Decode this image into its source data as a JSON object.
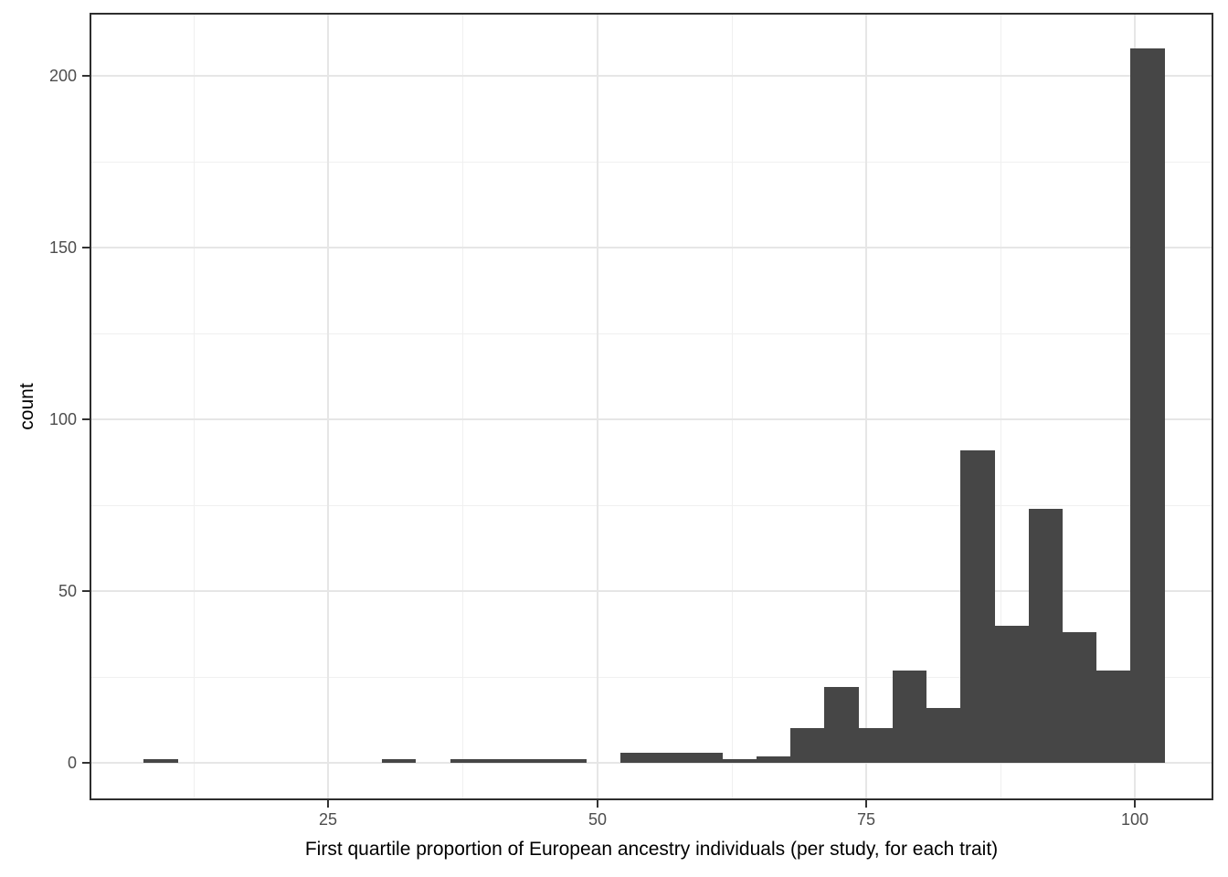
{
  "figure": {
    "x_axis_title": "First quartile proportion of European ancestry individuals (per study, for each trait)",
    "y_axis_title": "count"
  },
  "chart_data": {
    "type": "bar",
    "subtype": "histogram",
    "title": "",
    "xlabel": "First quartile proportion of European ancestry individuals (per study, for each trait)",
    "ylabel": "count",
    "bin_edges": [
      7.85,
      11.01,
      14.18,
      17.34,
      20.51,
      23.67,
      26.84,
      30.0,
      33.16,
      36.33,
      39.49,
      42.66,
      45.82,
      48.99,
      52.15,
      55.31,
      58.48,
      61.64,
      64.81,
      67.97,
      71.13,
      74.3,
      77.46,
      80.63,
      83.79,
      86.96,
      90.12,
      93.28,
      96.45,
      99.61,
      102.78
    ],
    "counts": [
      1,
      0,
      0,
      0,
      0,
      0,
      0,
      1,
      0,
      1,
      1,
      1,
      1,
      0,
      3,
      3,
      3,
      1,
      2,
      10,
      22,
      10,
      27,
      16,
      91,
      40,
      74,
      38,
      27,
      208
    ],
    "x_ticks": [
      25,
      50,
      75,
      100
    ],
    "y_ticks": [
      0,
      50,
      100,
      150,
      200
    ],
    "x_minor_gridlines": [
      12.5,
      37.5,
      62.5,
      87.5
    ],
    "y_minor_gridlines": [
      25,
      75,
      125,
      175
    ],
    "xlim": [
      2.8,
      107.3
    ],
    "ylim": [
      -10.9,
      218.4
    ],
    "grid": true,
    "legend": "none",
    "bar_color": "#464646",
    "colors": {
      "panel_background": "#ffffff",
      "plot_background": "#ffffff",
      "panel_border": "#2e2e2e",
      "gridline_major": "#e6e6e6",
      "gridline_minor": "#f0f0f0",
      "tick_label": "#4d4d4d",
      "axis_title": "#000000",
      "tick_mark": "#333333"
    }
  }
}
